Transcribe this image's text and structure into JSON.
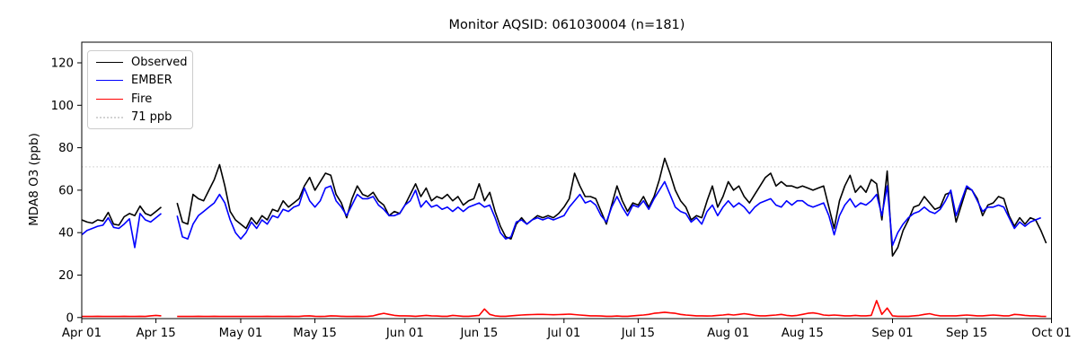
{
  "page": {
    "background": "#ffffff"
  },
  "chart_data": {
    "type": "line",
    "title": "Monitor AQSID: 061030004 (n=181)",
    "ylabel": "MDA8 O3 (ppb)",
    "xlabel": "",
    "grid": false,
    "legend_position": "upper-left",
    "y_ticks": [
      0,
      20,
      40,
      60,
      80,
      100,
      120
    ],
    "ylim": [
      0,
      130
    ],
    "x_start": "Apr 01",
    "x_end": "Oct 01",
    "x_span_days": 183,
    "x_ticks": [
      {
        "label": "Apr 01",
        "day": 0
      },
      {
        "label": "Apr 15",
        "day": 14
      },
      {
        "label": "May 01",
        "day": 30
      },
      {
        "label": "May 15",
        "day": 44
      },
      {
        "label": "Jun 01",
        "day": 61
      },
      {
        "label": "Jun 15",
        "day": 75
      },
      {
        "label": "Jul 01",
        "day": 91
      },
      {
        "label": "Jul 15",
        "day": 105
      },
      {
        "label": "Aug 01",
        "day": 122
      },
      {
        "label": "Aug 15",
        "day": 136
      },
      {
        "label": "Sep 01",
        "day": 153
      },
      {
        "label": "Sep 15",
        "day": 167
      },
      {
        "label": "Oct 01",
        "day": 183
      }
    ],
    "threshold": {
      "label": "71 ppb",
      "value": 71,
      "color": "#d3d3d3",
      "style": "dotted"
    },
    "series": [
      {
        "name": "Observed",
        "color": "#000000",
        "values": [
          46,
          45,
          44.5,
          46,
          45.5,
          49.5,
          44,
          43.5,
          47.5,
          49,
          48,
          52.5,
          49,
          48,
          50,
          52,
          null,
          null,
          54,
          45,
          44,
          58,
          56,
          55,
          60,
          65,
          72,
          62,
          50,
          46,
          44,
          42,
          47,
          44,
          48,
          46,
          51,
          50,
          55,
          52,
          54,
          56,
          62,
          66,
          60,
          64,
          68,
          67,
          58,
          54,
          47,
          56,
          62,
          58,
          57,
          59,
          55,
          53,
          48,
          50,
          49,
          53,
          58,
          63,
          57,
          61,
          55,
          57,
          56,
          58,
          55,
          57,
          53,
          55,
          56,
          63,
          55,
          59,
          50,
          43,
          38,
          37,
          44,
          47,
          44,
          46,
          48,
          47,
          48,
          47,
          49,
          52,
          56,
          68,
          62,
          57,
          57,
          56,
          50,
          44,
          53,
          62,
          55,
          50,
          54,
          53,
          57,
          52,
          57,
          65,
          75,
          68,
          60,
          55,
          52,
          46,
          48,
          47,
          55,
          62,
          52,
          57,
          64,
          60,
          62,
          57,
          54,
          58,
          62,
          66,
          68,
          62,
          64,
          62,
          62,
          61,
          62,
          61,
          60,
          61,
          62,
          52,
          42,
          55,
          62,
          67,
          59,
          62,
          59,
          65,
          63,
          46,
          69,
          29,
          33,
          41,
          46,
          52,
          53,
          57,
          54,
          51,
          52,
          58,
          59,
          45,
          53,
          61,
          60,
          56,
          48,
          53,
          54,
          57,
          56,
          48,
          43,
          47,
          44,
          47,
          46,
          41,
          35
        ]
      },
      {
        "name": "EMBER",
        "color": "#0000ff",
        "values": [
          39,
          41,
          42,
          43,
          43.5,
          47,
          42.5,
          42,
          44,
          46.5,
          33,
          49,
          46,
          45,
          47,
          49,
          null,
          null,
          48,
          38,
          37,
          44,
          48,
          50,
          52,
          54,
          58,
          54,
          46,
          40,
          37,
          40,
          45,
          42,
          46,
          44,
          48,
          47,
          51,
          50,
          52,
          53,
          61,
          55,
          52,
          55,
          61,
          62,
          55,
          52,
          48,
          53,
          58,
          56,
          56,
          57,
          53,
          51,
          48,
          48,
          49,
          53,
          55,
          60,
          52,
          55,
          52,
          53,
          51,
          52,
          50,
          52,
          50,
          52,
          53,
          54,
          52,
          53,
          47,
          40,
          37,
          38,
          45,
          46,
          44,
          46,
          47,
          46,
          47,
          46,
          47,
          48,
          52,
          55,
          58,
          54,
          55,
          53,
          48,
          45,
          52,
          57,
          52,
          48,
          53,
          52,
          55,
          51,
          56,
          60,
          64,
          58,
          52,
          50,
          49,
          45,
          47,
          44,
          50,
          53,
          48,
          52,
          55,
          52,
          54,
          52,
          49,
          52,
          54,
          55,
          56,
          53,
          52,
          55,
          53,
          55,
          55,
          53,
          52,
          53,
          54,
          48,
          39,
          48,
          53,
          56,
          52,
          54,
          53,
          55,
          58,
          48,
          62,
          34,
          40,
          44,
          47,
          49,
          50,
          52,
          50,
          49,
          51,
          55,
          60,
          48,
          55,
          62,
          60,
          55,
          50,
          52,
          52,
          53,
          52,
          47,
          42,
          45,
          43,
          45,
          46,
          47,
          null
        ]
      },
      {
        "name": "Fire",
        "color": "#ff0000",
        "values": [
          0.5,
          0.5,
          0.5,
          0.6,
          0.5,
          0.5,
          0.5,
          0.5,
          0.6,
          0.5,
          0.5,
          0.6,
          0.5,
          0.8,
          1.0,
          0.8,
          null,
          null,
          0.5,
          0.5,
          0.5,
          0.5,
          0.6,
          0.5,
          0.5,
          0.6,
          0.5,
          0.5,
          0.5,
          0.5,
          0.5,
          0.5,
          0.5,
          0.5,
          0.5,
          0.6,
          0.5,
          0.5,
          0.5,
          0.6,
          0.5,
          0.5,
          0.7,
          0.8,
          0.6,
          0.5,
          0.6,
          0.8,
          0.7,
          0.6,
          0.5,
          0.5,
          0.6,
          0.5,
          0.6,
          0.8,
          1.5,
          2.0,
          1.5,
          1.0,
          0.8,
          0.8,
          0.7,
          0.6,
          0.8,
          1.0,
          0.8,
          0.7,
          0.6,
          0.6,
          1.0,
          0.8,
          0.6,
          0.6,
          0.8,
          1.0,
          4.0,
          1.5,
          0.8,
          0.6,
          0.6,
          0.8,
          1.0,
          1.2,
          1.3,
          1.4,
          1.5,
          1.5,
          1.4,
          1.3,
          1.4,
          1.5,
          1.6,
          1.4,
          1.2,
          1.0,
          0.8,
          0.8,
          0.7,
          0.6,
          0.6,
          0.7,
          0.6,
          0.6,
          0.8,
          1.0,
          1.2,
          1.5,
          2.0,
          2.2,
          2.5,
          2.2,
          2.0,
          1.5,
          1.2,
          1.0,
          0.8,
          0.8,
          0.7,
          0.8,
          1.0,
          1.2,
          1.5,
          1.2,
          1.5,
          1.8,
          1.5,
          1.0,
          0.8,
          0.8,
          1.0,
          1.2,
          1.5,
          1.0,
          0.8,
          1.0,
          1.5,
          2.0,
          2.2,
          1.8,
          1.2,
          1.0,
          1.2,
          1.0,
          0.8,
          0.8,
          1.0,
          0.8,
          0.8,
          1.0,
          8.0,
          1.5,
          4.5,
          0.8,
          0.6,
          0.6,
          0.6,
          0.8,
          1.0,
          1.5,
          1.8,
          1.2,
          0.8,
          0.8,
          0.8,
          0.8,
          1.0,
          1.2,
          1.0,
          0.8,
          0.8,
          1.0,
          1.2,
          1.0,
          0.8,
          0.8,
          1.5,
          1.3,
          1.0,
          0.8,
          0.8,
          0.6,
          0.5
        ]
      }
    ]
  }
}
